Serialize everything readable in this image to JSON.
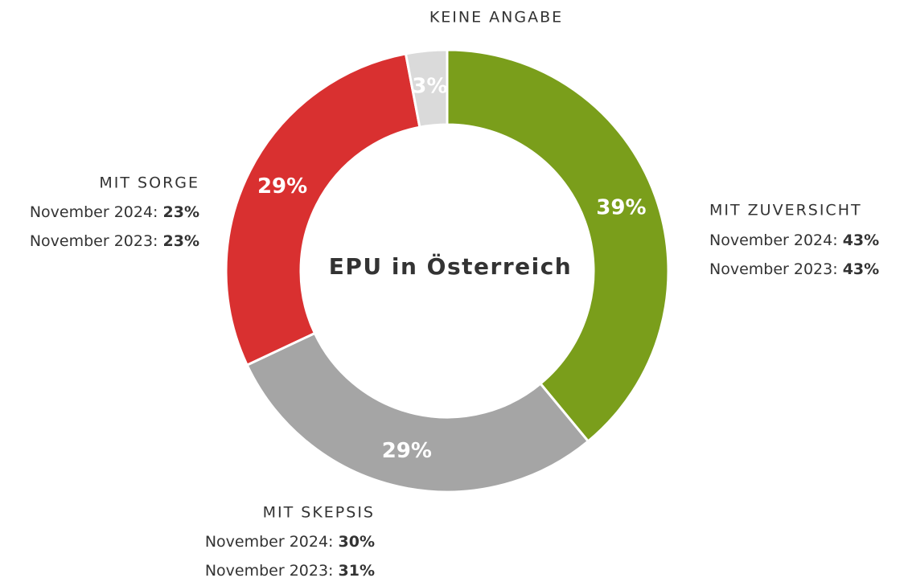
{
  "chart_data": {
    "type": "donut",
    "center_label": "EPU in Österreich",
    "categories": [
      "MIT ZUVERSICHT",
      "MIT SKEPSIS",
      "MIT SORGE",
      "KEINE ANGABE"
    ],
    "values": [
      39,
      29,
      29,
      3
    ],
    "value_labels": [
      "39%",
      "29%",
      "29%",
      "3%"
    ],
    "colors": [
      "#7a9e1b",
      "#a5a5a5",
      "#d93030",
      "#dadada"
    ],
    "comparison_series": [
      {
        "name": "November 2024:",
        "values": [
          43,
          30,
          23,
          null
        ],
        "value_labels": [
          "43%",
          "30%",
          "23%",
          null
        ]
      },
      {
        "name": "November 2023:",
        "values": [
          43,
          31,
          23,
          null
        ],
        "value_labels": [
          "43%",
          "31%",
          "23%",
          null
        ]
      }
    ]
  }
}
